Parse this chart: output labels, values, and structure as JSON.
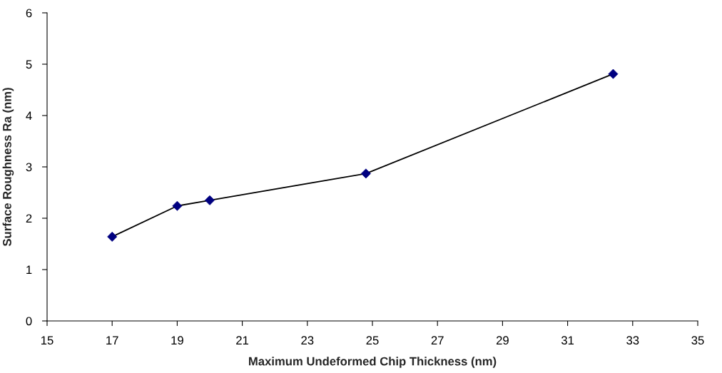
{
  "chart_data": {
    "type": "line",
    "xlabel": "Maximum Undeformed Chip Thickness (nm)",
    "ylabel": "Surface Roughness Ra (nm)",
    "x": [
      17,
      19,
      20,
      24.8,
      32.4
    ],
    "series": [
      {
        "color": "#000000",
        "marker": "none",
        "values": [
          1.64,
          2.24,
          2.35,
          2.87,
          4.81
        ]
      },
      {
        "type": "scatter",
        "color": "#000080",
        "marker": "diamond",
        "values": [
          1.64,
          2.24,
          2.35,
          2.87,
          4.81
        ]
      }
    ],
    "xlim": [
      15,
      35
    ],
    "xticks": [
      15,
      17,
      19,
      21,
      23,
      25,
      27,
      29,
      31,
      33,
      35
    ],
    "ylim": [
      0,
      6
    ],
    "yticks": [
      0,
      1,
      2,
      3,
      4,
      5,
      6
    ],
    "grid": false,
    "legend": false
  }
}
